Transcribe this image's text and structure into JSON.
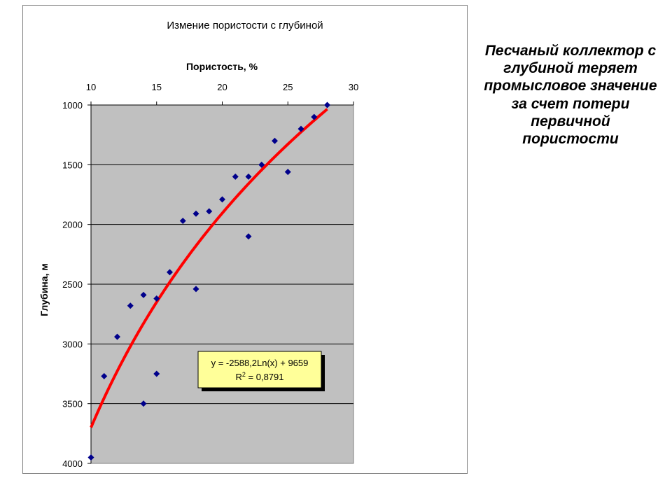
{
  "caption": "Песчаный коллектор с глубиной теряет промысловое значение за счет потери первичной пористости",
  "chart_data": {
    "type": "scatter",
    "title": "Измение пористости с глубиной",
    "xlabel": "Пористость, %",
    "ylabel": "Глубина, м",
    "x_axis_position": "top",
    "y_axis_reversed": true,
    "xlim": [
      10,
      30
    ],
    "ylim": [
      1000,
      4000
    ],
    "x_ticks": [
      10,
      15,
      20,
      25,
      30
    ],
    "y_ticks": [
      1000,
      1500,
      2000,
      2500,
      3000,
      3500,
      4000
    ],
    "grid": "horizontal",
    "plot_background": "#c0c0c0",
    "series": [
      {
        "marker": "diamond",
        "color": "#00008b",
        "points": [
          [
            10,
            3950
          ],
          [
            11,
            3270
          ],
          [
            12,
            2940
          ],
          [
            13,
            2680
          ],
          [
            14,
            2590
          ],
          [
            14,
            3500
          ],
          [
            15,
            2620
          ],
          [
            15,
            3250
          ],
          [
            16,
            2400
          ],
          [
            17,
            1970
          ],
          [
            18,
            1910
          ],
          [
            18,
            2540
          ],
          [
            19,
            1890
          ],
          [
            20,
            1790
          ],
          [
            21,
            1600
          ],
          [
            22,
            1600
          ],
          [
            22,
            2100
          ],
          [
            23,
            1500
          ],
          [
            24,
            1300
          ],
          [
            25,
            1560
          ],
          [
            26,
            1200
          ],
          [
            27,
            1100
          ],
          [
            28,
            1000
          ]
        ]
      }
    ],
    "trendline": {
      "type": "logarithmic",
      "color": "#ff0000",
      "equation": "y = -2588,2Ln(x) + 9659",
      "r2_label": "R",
      "r2_sup": "2",
      "r2_value": " = 0,8791",
      "a": -2588.2,
      "b": 9659,
      "x_range": [
        10,
        28
      ]
    }
  }
}
